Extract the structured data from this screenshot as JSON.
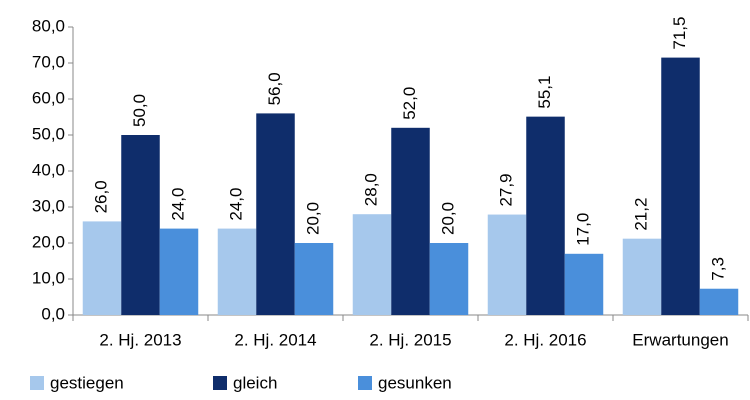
{
  "chart_data": {
    "type": "bar",
    "categories": [
      "2. Hj. 2013",
      "2. Hj. 2014",
      "2. Hj. 2015",
      "2. Hj. 2016",
      "Erwartungen"
    ],
    "series": [
      {
        "name": "gestiegen",
        "color": "#a6c8ec",
        "values": [
          26.0,
          24.0,
          28.0,
          27.9,
          21.2
        ],
        "value_labels": [
          "26,0",
          "24,0",
          "28,0",
          "27,9",
          "21,2"
        ]
      },
      {
        "name": "gleich",
        "color": "#0f2d6b",
        "values": [
          50.0,
          56.0,
          52.0,
          55.1,
          71.5
        ],
        "value_labels": [
          "50,0",
          "56,0",
          "52,0",
          "55,1",
          "71,5"
        ]
      },
      {
        "name": "gesunken",
        "color": "#4a8fdb",
        "values": [
          24.0,
          20.0,
          20.0,
          17.0,
          7.3
        ],
        "value_labels": [
          "24,0",
          "20,0",
          "20,0",
          "17,0",
          "7,3"
        ]
      }
    ],
    "ylim": [
      0,
      80
    ],
    "yticks": [
      {
        "value": 0,
        "label": "0,0"
      },
      {
        "value": 10,
        "label": "10,0"
      },
      {
        "value": 20,
        "label": "20,0"
      },
      {
        "value": 30,
        "label": "30,0"
      },
      {
        "value": 40,
        "label": "40,0"
      },
      {
        "value": 50,
        "label": "50,0"
      },
      {
        "value": 60,
        "label": "60,0"
      },
      {
        "value": 70,
        "label": "70,0"
      },
      {
        "value": 80,
        "label": "80,0"
      }
    ],
    "grid": false,
    "legend": "bottom"
  }
}
